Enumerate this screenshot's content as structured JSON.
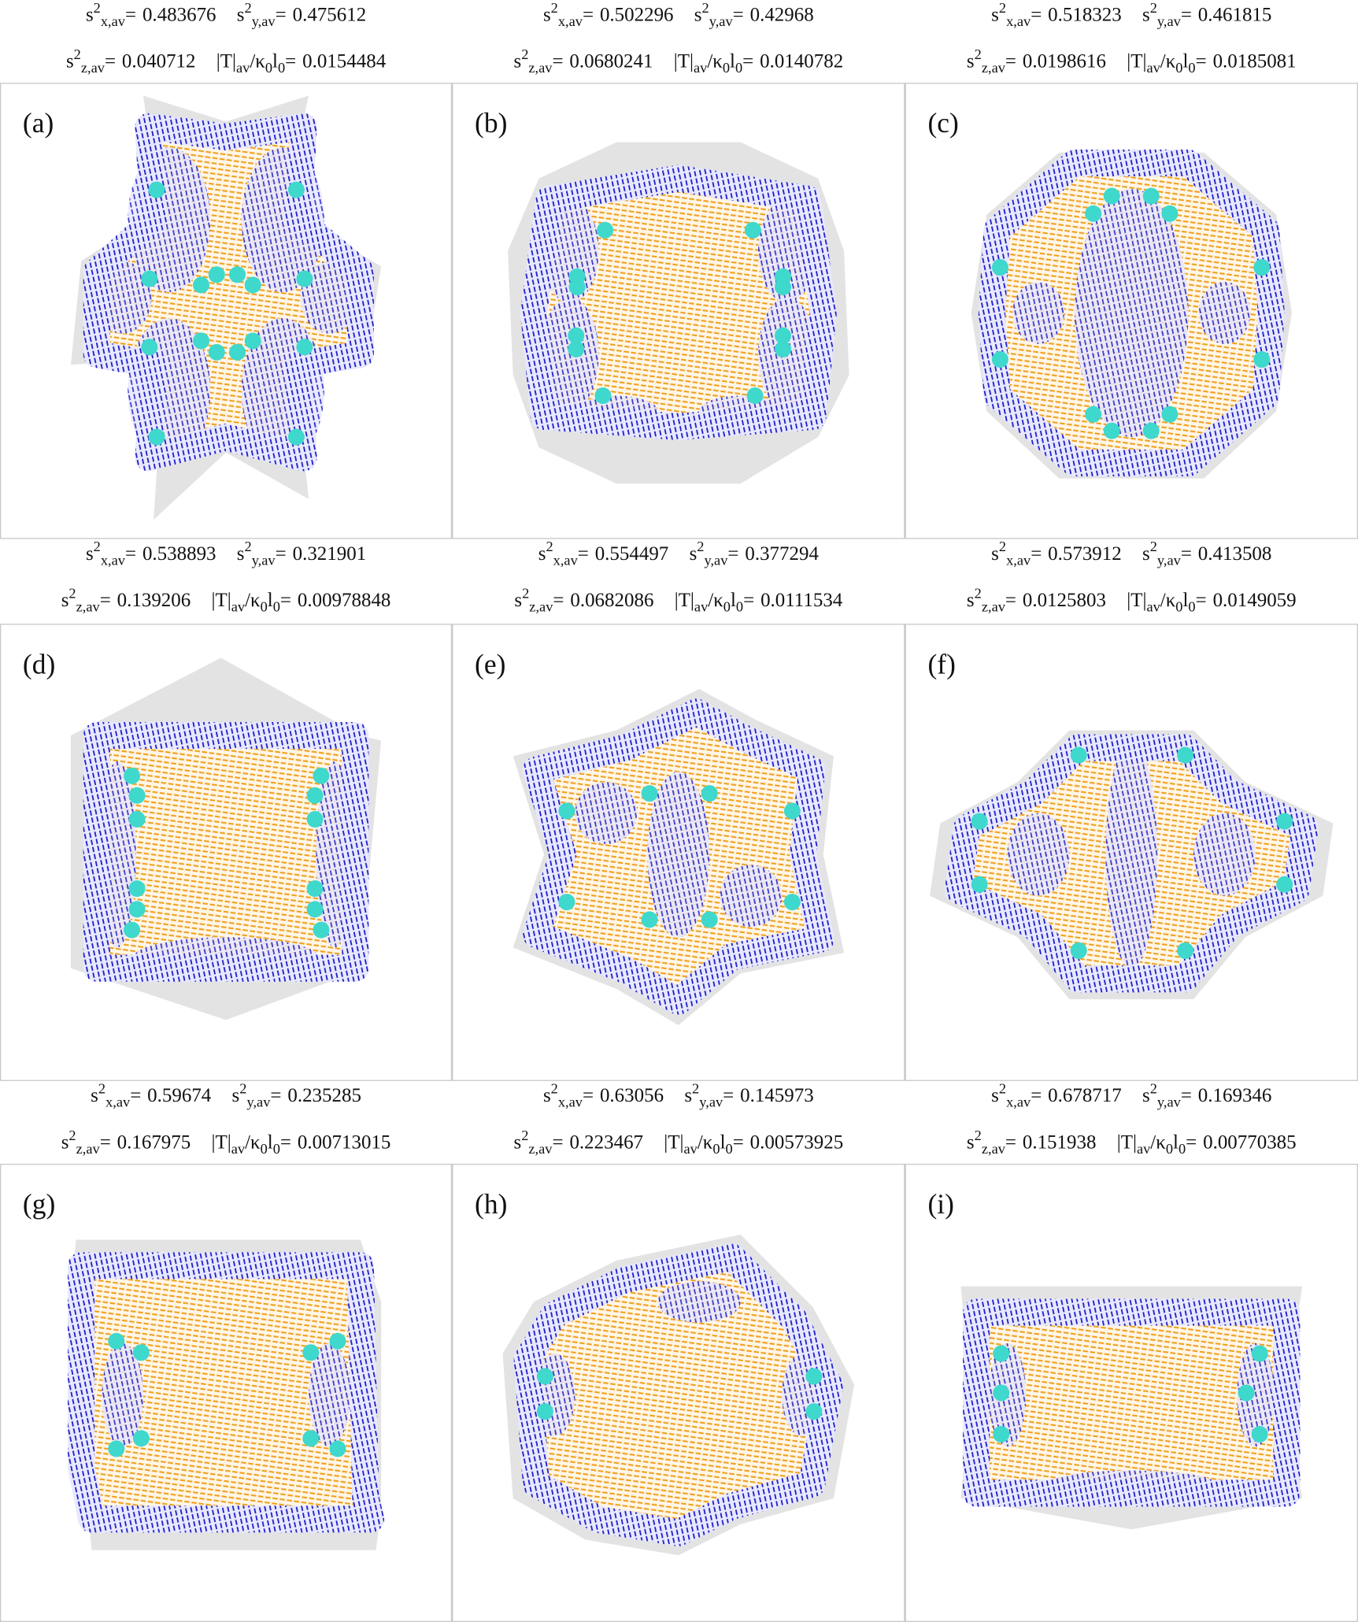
{
  "symbols": {
    "s": "s",
    "sup": "2",
    "x": "x,av",
    "y": "y,av",
    "z": "z,av",
    "eq": "=",
    "T": "|T|",
    "av": "av",
    "kappa": "/κ",
    "zero": "0",
    "l": "l"
  },
  "panels": [
    {
      "label": "(a)",
      "sx": "0.483676",
      "sy": "0.475612",
      "sz": "0.040712",
      "T": "0.0154484"
    },
    {
      "label": "(b)",
      "sx": "0.502296",
      "sy": "0.42968",
      "sz": "0.0680241",
      "T": "0.0140782"
    },
    {
      "label": "(c)",
      "sx": "0.518323",
      "sy": "0.461815",
      "sz": "0.0198616",
      "T": "0.0185081"
    },
    {
      "label": "(d)",
      "sx": "0.538893",
      "sy": "0.321901",
      "sz": "0.139206",
      "T": "0.00978848"
    },
    {
      "label": "(e)",
      "sx": "0.554497",
      "sy": "0.377294",
      "sz": "0.0682086",
      "T": "0.0111534"
    },
    {
      "label": "(f)",
      "sx": "0.573912",
      "sy": "0.413508",
      "sz": "0.0125803",
      "T": "0.0149059"
    },
    {
      "label": "(g)",
      "sx": "0.59674",
      "sy": "0.235285",
      "sz": "0.167975",
      "T": "0.00713015"
    },
    {
      "label": "(h)",
      "sx": "0.63056",
      "sy": "0.145973",
      "sz": "0.223467",
      "T": "0.00573925"
    },
    {
      "label": "(i)",
      "sx": "0.678717",
      "sy": "0.169346",
      "sz": "0.151938",
      "T": "0.00770385"
    }
  ]
}
